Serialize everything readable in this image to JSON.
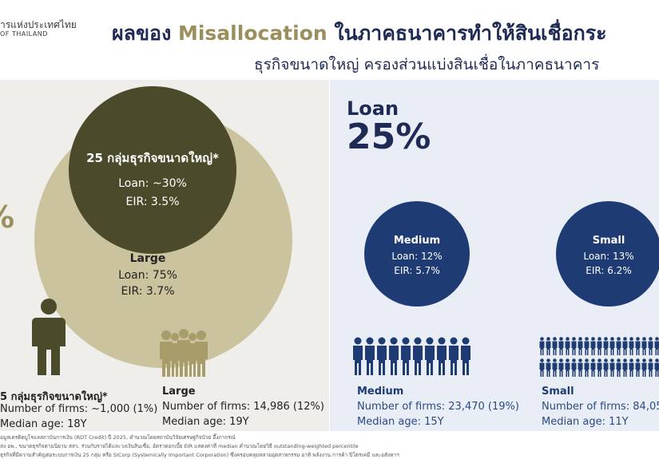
{
  "header": {
    "logo_line1": "ารแห่งประเทศไทย",
    "logo_line2": "OF THAILAND",
    "title_prefix": "ผลของ ",
    "title_highlight": "Misallocation",
    "title_suffix": " ในภาคธนาคารทำให้สินเชื่อกระ",
    "subtitle": "ธุรกิจขนาดใหญ่ ครองส่วนแบ่งสินเชื่อในภาคธนาคาร"
  },
  "left": {
    "partial_percent": "%",
    "inner_title": "25 กลุ่มธุรกิจขนาดใหญ่*",
    "inner_loan": "Loan: ~30%",
    "inner_eir": "EIR: 3.5%",
    "large_title": "Large",
    "large_loan": "Loan: 75%",
    "large_eir": "EIR: 3.7%",
    "group25_title": "5 กลุ่มธุรกิจขนาดใหญ่*",
    "group25_firms": "Number of firms: ~1,000 (1%)",
    "group25_age": "Median age: 18Y",
    "large_label": "Large",
    "large_firms": "Number of firms: 14,986 (12%)",
    "large_age": "Median age: 19Y"
  },
  "right": {
    "loan_word": "Loan",
    "loan_pct": "25%",
    "medium_title": "Medium",
    "medium_loan": "Loan: 12%",
    "medium_eir": "EIR: 5.7%",
    "small_title": "Small",
    "small_loan": "Loan: 13%",
    "small_eir": "EIR: 6.2%",
    "medium_label": "Medium",
    "medium_firms": "Number of firms: 23,470 (19%)",
    "medium_age": "Median age: 15Y",
    "small_label": "Small",
    "small_firms": "Number of firms: 84,05",
    "small_age": "Median age: 11Y"
  },
  "footer": {
    "note1": "อมูลเครดิตบูโรแลสถาบันการเงิน (RDT Credit) ปี 2025, คำนวณโดยสถาบันวิจัยเศรษฐกิจป๋วย อึ๊งภากรณ์",
    "note2": "ล่ง อพ., ขนาดธุรกิจตามนิยาม สสว. ร่วมกับรายได้และวงเงินสินเชื่อ, อัตราดอกเบี้ย EIR แสดงค่าที่ median คำนวณโดยวิธี outstanding-weighted percentile",
    "note3": "ธุรกิจที่มีความสำคัญต่อระบบการเงิน 25 กลุ่ม หรือ SICorp (Systemically Important Corporation) ซึ่งครอบคลุมหลายอุตสาหกรรม อาทิ พลังงาน การค้า ปิโตรเคมี และอสังหาฯ"
  },
  "colors": {
    "navy": "#1f2b55",
    "gold": "#9c8f5e",
    "dark_olive": "#4b4b2c",
    "light_olive": "#cbc29e",
    "blue": "#1f3b73"
  }
}
